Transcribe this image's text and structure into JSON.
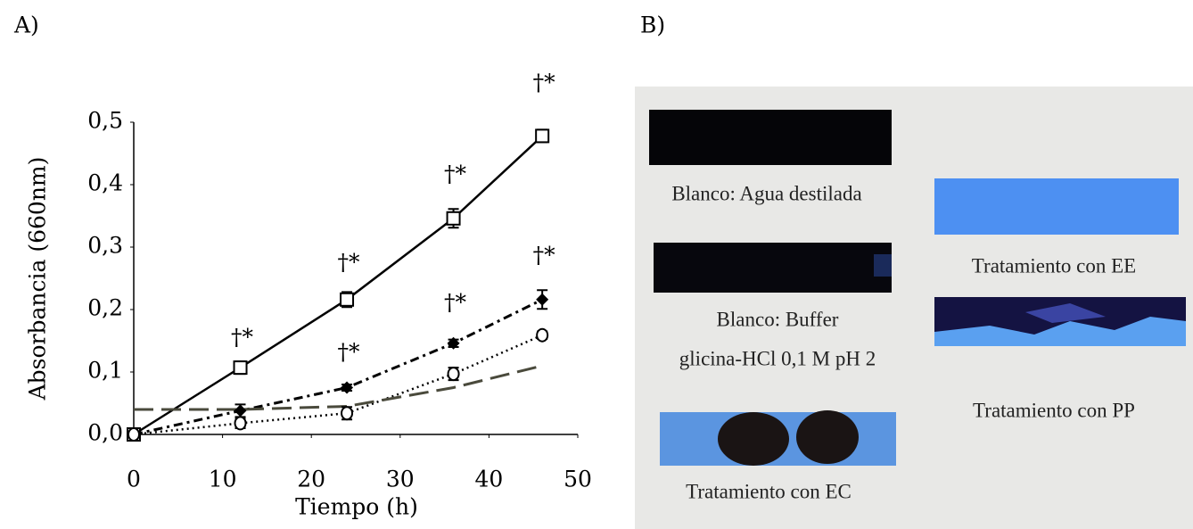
{
  "panel_labels": [
    "A)",
    "B)"
  ],
  "chart_data": {
    "type": "line",
    "xlabel": "Tiempo (h)",
    "ylabel": "Absorbancia (660nm)",
    "xlim": [
      0,
      50
    ],
    "xticks": [
      0,
      10,
      20,
      30,
      40,
      50
    ],
    "ylim": [
      0,
      0.5
    ],
    "yticks": [
      {
        "value": 0,
        "label": "0,0"
      },
      {
        "value": 0.1,
        "label": "0,1"
      },
      {
        "value": 0.2,
        "label": "0,2"
      },
      {
        "value": 0.3,
        "label": "0,3"
      },
      {
        "value": 0.4,
        "label": "0,4"
      },
      {
        "value": 0.5,
        "label": "0,5"
      }
    ],
    "series": [
      {
        "color": "#000000",
        "marker": "square",
        "dash": "solid",
        "x": [
          0,
          12,
          24,
          36,
          46
        ],
        "values": [
          0,
          0.107,
          0.216,
          0.346,
          0.478
        ],
        "errors": [
          0.004,
          0.01,
          0.012,
          0.015,
          0.01
        ]
      },
      {
        "color": "#000000",
        "marker": "diamond",
        "dash": "dashdot",
        "x": [
          0,
          12,
          24,
          36,
          46
        ],
        "values": [
          0,
          0.038,
          0.075,
          0.146,
          0.216
        ],
        "errors": [
          0.004,
          0.01,
          0.005,
          0.006,
          0.015
        ]
      },
      {
        "color": "#000000",
        "marker": "circle",
        "dash": "dotted",
        "x": [
          0,
          12,
          24,
          36,
          46
        ],
        "values": [
          0,
          0.018,
          0.034,
          0.097,
          0.159
        ],
        "errors": [
          0.004,
          0.008,
          0.01,
          0.01,
          0.006
        ]
      },
      {
        "color": "#4a4a3c",
        "marker": "none",
        "dash": "dashed",
        "x": [
          0,
          12,
          24,
          36,
          46
        ],
        "values": [
          0.04,
          0.04,
          0.045,
          0.075,
          0.11
        ]
      }
    ],
    "annotations": [
      "†*",
      "†*",
      "†*",
      "†*",
      "†*",
      "†*",
      "†*"
    ]
  },
  "photo": {
    "labels": [
      "Blanco: Agua destilada",
      "Tratamiento con EE",
      "Blanco: Buffer",
      "glicina-HCl 0,1 M pH 2",
      "Tratamiento con  PP",
      "Tratamiento con EC"
    ]
  }
}
